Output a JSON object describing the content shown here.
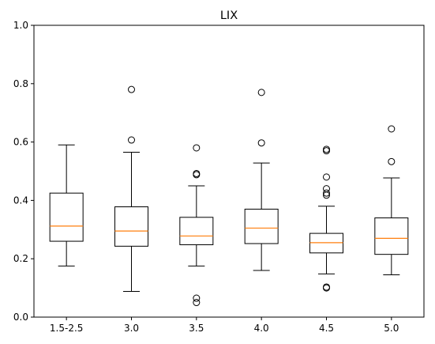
{
  "chart_data": {
    "type": "boxplot",
    "title": "LIX",
    "xlabel": "",
    "ylabel": "",
    "ylim": [
      0,
      1
    ],
    "yticks": [
      "0.0",
      "0.2",
      "0.4",
      "0.6",
      "0.8",
      "1.0"
    ],
    "grid": false,
    "categories": [
      "1.5-2.5",
      "3.0",
      "3.5",
      "4.0",
      "4.5",
      "5.0"
    ],
    "boxes": [
      {
        "whisker_low": 0.175,
        "q1": 0.26,
        "median": 0.312,
        "q3": 0.425,
        "whisker_high": 0.59,
        "outliers": []
      },
      {
        "whisker_low": 0.088,
        "q1": 0.243,
        "median": 0.295,
        "q3": 0.378,
        "whisker_high": 0.565,
        "outliers": [
          0.607,
          0.78
        ]
      },
      {
        "whisker_low": 0.175,
        "q1": 0.248,
        "median": 0.278,
        "q3": 0.342,
        "whisker_high": 0.45,
        "outliers": [
          0.05,
          0.065,
          0.488,
          0.492,
          0.58
        ]
      },
      {
        "whisker_low": 0.16,
        "q1": 0.252,
        "median": 0.305,
        "q3": 0.37,
        "whisker_high": 0.528,
        "outliers": [
          0.597,
          0.77
        ]
      },
      {
        "whisker_low": 0.148,
        "q1": 0.22,
        "median": 0.255,
        "q3": 0.287,
        "whisker_high": 0.38,
        "outliers": [
          0.1,
          0.103,
          0.418,
          0.425,
          0.44,
          0.48,
          0.57,
          0.575
        ]
      },
      {
        "whisker_low": 0.145,
        "q1": 0.215,
        "median": 0.27,
        "q3": 0.34,
        "whisker_high": 0.477,
        "outliers": [
          0.533,
          0.645
        ]
      }
    ],
    "colors": {
      "box": "#000000",
      "median": "#ff7f0e",
      "flier": "#000000"
    }
  }
}
